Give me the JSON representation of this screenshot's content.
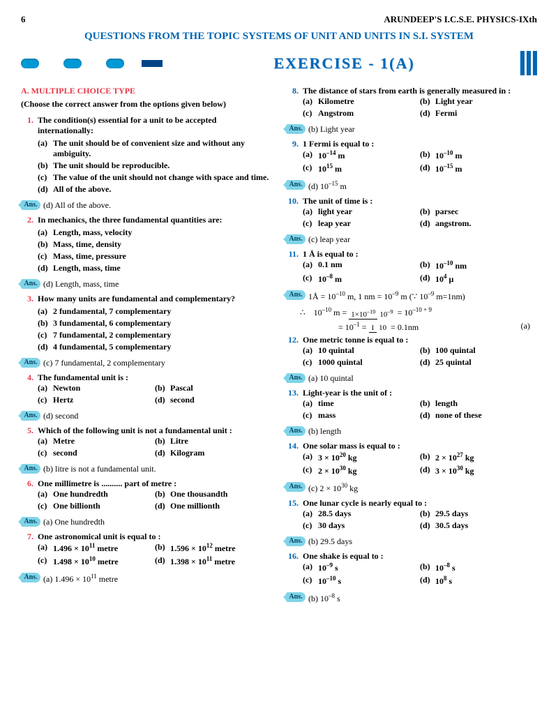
{
  "page_number": "6",
  "book_title": "ARUNDEEP'S I.C.S.E. PHYSICS-IXth",
  "topic": "QUESTIONS FROM THE TOPIC SYSTEMS OF UNIT AND UNITS IN S.I. SYSTEM",
  "exercise": "EXERCISE - 1(A)",
  "section": "A. MULTIPLE CHOICE TYPE",
  "instruction": "(Choose the correct answer from the options given below)",
  "colors": {
    "red": "#e63946",
    "blue": "#0066b3",
    "cyan": "#0099d6",
    "ansbadge": "#7fd4e8"
  },
  "left": [
    {
      "n": "1.",
      "q": "The condition(s) essential for a unit to be accepted internationally:",
      "opts": [
        [
          "(a)",
          "The unit should be of convenient size and without any ambiguity."
        ],
        [
          "(b)",
          "The unit should be reproducible."
        ],
        [
          "(c)",
          "The value of the unit should not change with space and time."
        ],
        [
          "(d)",
          "All of the above."
        ]
      ],
      "ans": "(d) All of the above."
    },
    {
      "n": "2.",
      "q": "In mechanics, the three fundamental quantities are:",
      "opts": [
        [
          "(a)",
          "Length, mass, velocity"
        ],
        [
          "(b)",
          "Mass, time, density"
        ],
        [
          "(c)",
          "Mass, time, pressure"
        ],
        [
          "(d)",
          "Length, mass, time"
        ]
      ],
      "ans": "(d) Length, mass, time"
    },
    {
      "n": "3.",
      "q": "How many units are fundamental and complementary?",
      "opts": [
        [
          "(a)",
          "2 fundamental, 7 complementary"
        ],
        [
          "(b)",
          "3 fundamental, 6 complementary"
        ],
        [
          "(c)",
          "7 fundamental, 2 complementary"
        ],
        [
          "(d)",
          "4 fundamental, 5 complementary"
        ]
      ],
      "ans": "(c) 7 fundamental, 2 complementary"
    },
    {
      "n": "4.",
      "q": "The fundamental unit is :",
      "opts2": [
        [
          "(a)",
          "Newton"
        ],
        [
          "(b)",
          "Pascal"
        ],
        [
          "(c)",
          "Hertz"
        ],
        [
          "(d)",
          "second"
        ]
      ],
      "ans": "(d) second"
    },
    {
      "n": "5.",
      "q": "Which of the following unit is not a fundamental unit :",
      "opts2": [
        [
          "(a)",
          "Metre"
        ],
        [
          "(b)",
          "Litre"
        ],
        [
          "(c)",
          "second"
        ],
        [
          "(d)",
          "Kilogram"
        ]
      ],
      "ans": "(b) litre is not a fundamental unit."
    },
    {
      "n": "6.",
      "q": "One millimetre is .......... part of metre :",
      "opts2": [
        [
          "(a)",
          "One hundredth"
        ],
        [
          "(b)",
          "One thousandth"
        ],
        [
          "(c)",
          "One billionth"
        ],
        [
          "(d)",
          "One millionth"
        ]
      ],
      "ans": "(a) One hundredth"
    },
    {
      "n": "7.",
      "q": "One astronomical unit is equal to :",
      "opts2": [
        [
          "(a)",
          "1.496 × 10<sup>11</sup> metre"
        ],
        [
          "(b)",
          "1.596 × 10<sup>12</sup> metre"
        ],
        [
          "(c)",
          "1.498 × 10<sup>10</sup> metre"
        ],
        [
          "(d)",
          "1.398 × 10<sup>11</sup> metre"
        ]
      ],
      "ans": "(a) 1.496 × 10<sup>11</sup> metre"
    }
  ],
  "right": [
    {
      "n": "8.",
      "q": "The distance of stars from earth is generally measured in :",
      "opts2": [
        [
          "(a)",
          "Kilometre"
        ],
        [
          "(b)",
          "Light year"
        ],
        [
          "(c)",
          "Angstrom"
        ],
        [
          "(d)",
          "Fermi"
        ]
      ],
      "ans": "(b) Light year"
    },
    {
      "n": "9.",
      "q": "1 Fermi is equal to :",
      "opts2": [
        [
          "(a)",
          "10<sup>–14</sup> m"
        ],
        [
          "(b)",
          "10<sup>–10</sup> m"
        ],
        [
          "(c)",
          "10<sup>15</sup> m"
        ],
        [
          "(d)",
          "10<sup>–15</sup> m"
        ]
      ],
      "ans": "(d) 10<sup>–15</sup> m"
    },
    {
      "n": "10.",
      "q": "The unit of time is :",
      "opts2": [
        [
          "(a)",
          "light year"
        ],
        [
          "(b)",
          "parsec"
        ],
        [
          "(c)",
          "leap year"
        ],
        [
          "(d)",
          "angstrom."
        ]
      ],
      "ans": "(c) leap year"
    },
    {
      "n": "11.",
      "q": "1 Å is equal to :",
      "opts2": [
        [
          "(a)",
          "0.1 nm"
        ],
        [
          "(b)",
          "10<sup>–10</sup> nm"
        ],
        [
          "(c)",
          "10<sup>–8</sup> m"
        ],
        [
          "(d)",
          "10<sup>4</sup> μ"
        ]
      ],
      "ans_math": true
    },
    {
      "n": "12.",
      "q": "One metric tonne is equal to :",
      "opts2": [
        [
          "(a)",
          "10 quintal"
        ],
        [
          "(b)",
          "100 quintal"
        ],
        [
          "(c)",
          "1000 quintal"
        ],
        [
          "(d)",
          "25 quintal"
        ]
      ],
      "ans": "(a) 10 quintal"
    },
    {
      "n": "13.",
      "q": "Light-year is the unit of :",
      "opts2": [
        [
          "(a)",
          "time"
        ],
        [
          "(b)",
          "length"
        ],
        [
          "(c)",
          "mass"
        ],
        [
          "(d)",
          "none of these"
        ]
      ],
      "ans": "(b) length"
    },
    {
      "n": "14.",
      "q": "One solar mass is equal to :",
      "opts2": [
        [
          "(a)",
          "3 × 10<sup>20</sup> kg"
        ],
        [
          "(b)",
          "2 × 10<sup>27</sup> kg"
        ],
        [
          "(c)",
          "2 × 10<sup>30</sup> kg"
        ],
        [
          "(d)",
          "3 × 10<sup>30</sup> kg"
        ]
      ],
      "ans": "(c) 2 × 10<sup>30</sup> kg"
    },
    {
      "n": "15.",
      "q": "One lunar cycle is nearly equal to :",
      "opts2": [
        [
          "(a)",
          "28.5 days"
        ],
        [
          "(b)",
          "29.5 days"
        ],
        [
          "(c)",
          "30 days"
        ],
        [
          "(d)",
          "30.5 days"
        ]
      ],
      "ans": "(b) 29.5 days"
    },
    {
      "n": "16.",
      "q": "One shake is equal to :",
      "opts2": [
        [
          "(a)",
          "10<sup>–9</sup> s"
        ],
        [
          "(b)",
          "10<sup>–8</sup> s"
        ],
        [
          "(c)",
          "10<sup>–10</sup> s"
        ],
        [
          "(d)",
          "10<sup>8</sup> s"
        ]
      ],
      "ans": "(b) 10<sup>–8</sup> s"
    }
  ],
  "ans_label": "Ans.",
  "math11": {
    "line1": "1Å = 10<sup>–10</sup> m, 1 nm = 10<sup>–9</sup> m (∵ 10<sup>–9</sup> m=1nm)",
    "line2_pre": "∴&nbsp;&nbsp;&nbsp;&nbsp;10<sup>–10</sup> m =",
    "line2_num": "1×10<sup>–10</sup>",
    "line2_den": "10<sup>–9</sup>",
    "line2_post": " = 10<sup>–10 + 9</sup>",
    "line3_pre": "= 10<sup>–1</sup> = ",
    "line3_num": "1",
    "line3_den": "10",
    "line3_post": " = 0.1nm",
    "line3_tag": "(a)"
  }
}
